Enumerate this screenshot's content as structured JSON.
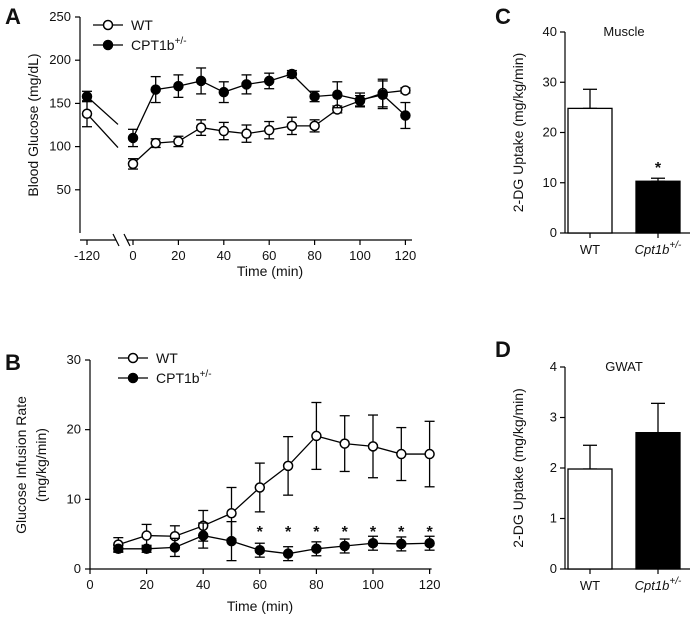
{
  "chart_data": [
    {
      "panel": "A",
      "type": "line",
      "ylabel": "Blood Glucose (mg/dL)",
      "xlabel": "Time (min)",
      "ylim": [
        0,
        250
      ],
      "yticks": [
        50,
        100,
        150,
        200,
        250
      ],
      "xticks": [
        -120,
        0,
        20,
        40,
        60,
        80,
        100,
        120
      ],
      "broken_x_axis": true,
      "legend": "top-left",
      "x": [
        -120,
        0,
        10,
        20,
        30,
        40,
        50,
        60,
        70,
        80,
        90,
        100,
        110,
        120
      ],
      "series": [
        {
          "name": "WT",
          "marker": "open-circle",
          "values": [
            138,
            80,
            104,
            106,
            122,
            118,
            115,
            119,
            124,
            124,
            143,
            153,
            162,
            165
          ],
          "errors": [
            15,
            6,
            5,
            6,
            9,
            10,
            10,
            10,
            10,
            7,
            4,
            6,
            16,
            3
          ]
        },
        {
          "name": "CPT1b",
          "name_sup": "+/-",
          "marker": "filled-circle",
          "values": [
            158,
            110,
            166,
            170,
            176,
            163,
            172,
            176,
            184,
            158,
            160,
            154,
            160,
            136
          ],
          "errors": [
            6,
            10,
            15,
            13,
            15,
            12,
            11,
            9,
            4,
            6,
            15,
            8,
            16,
            15
          ]
        }
      ]
    },
    {
      "panel": "B",
      "type": "line",
      "ylabel": [
        "Glucose Infusion Rate",
        "(mg/kg/min)"
      ],
      "xlabel": "Time (min)",
      "ylim": [
        0,
        30
      ],
      "yticks": [
        0,
        10,
        20,
        30
      ],
      "xlim": [
        0,
        120
      ],
      "xticks": [
        0,
        20,
        40,
        60,
        80,
        100,
        120
      ],
      "legend": "top-left",
      "x": [
        10,
        20,
        30,
        40,
        50,
        60,
        70,
        80,
        90,
        100,
        110,
        120
      ],
      "series": [
        {
          "name": "WT",
          "marker": "open-circle",
          "values": [
            3.5,
            4.8,
            4.7,
            6.2,
            8.0,
            11.7,
            14.8,
            19.1,
            18.0,
            17.6,
            16.5,
            16.5
          ],
          "errors": [
            1.0,
            1.6,
            1.5,
            2.2,
            3.7,
            3.5,
            4.2,
            4.8,
            4.0,
            4.5,
            3.8,
            4.7
          ]
        },
        {
          "name": "CPT1b",
          "name_sup": "+/-",
          "marker": "filled-circle",
          "values": [
            2.9,
            2.9,
            3.1,
            4.8,
            4.0,
            2.7,
            2.2,
            2.9,
            3.3,
            3.7,
            3.6,
            3.7
          ],
          "errors": [
            0.5,
            0.5,
            1.3,
            1.8,
            2.8,
            1.0,
            1.0,
            1.0,
            1.0,
            1.0,
            1.0,
            1.0
          ]
        }
      ],
      "significance_marker": "*",
      "significant_x": [
        60,
        70,
        80,
        90,
        100,
        110,
        120
      ]
    },
    {
      "panel": "C",
      "type": "bar",
      "title": "Muscle",
      "ylabel": "2-DG Uptake (mg/kg/min)",
      "ylim": [
        0,
        40
      ],
      "yticks": [
        0,
        10,
        20,
        30,
        40
      ],
      "categories": [
        "WT",
        "Cpt1b"
      ],
      "category_sup": [
        "",
        "+/-"
      ],
      "category_italic": [
        false,
        true
      ],
      "values": [
        24.8,
        10.3
      ],
      "errors": [
        3.8,
        0.6
      ],
      "fills": [
        "#ffffff",
        "#000000"
      ],
      "significance": [
        "",
        "*"
      ]
    },
    {
      "panel": "D",
      "type": "bar",
      "title": "GWAT",
      "ylabel": "2-DG Uptake (mg/kg/min)",
      "ylim": [
        0,
        4
      ],
      "yticks": [
        0,
        1,
        2,
        3,
        4
      ],
      "categories": [
        "WT",
        "Cpt1b"
      ],
      "category_sup": [
        "",
        "+/-"
      ],
      "category_italic": [
        false,
        true
      ],
      "values": [
        1.98,
        2.7
      ],
      "errors": [
        0.47,
        0.58
      ],
      "fills": [
        "#ffffff",
        "#000000"
      ],
      "significance": [
        "",
        ""
      ]
    }
  ]
}
